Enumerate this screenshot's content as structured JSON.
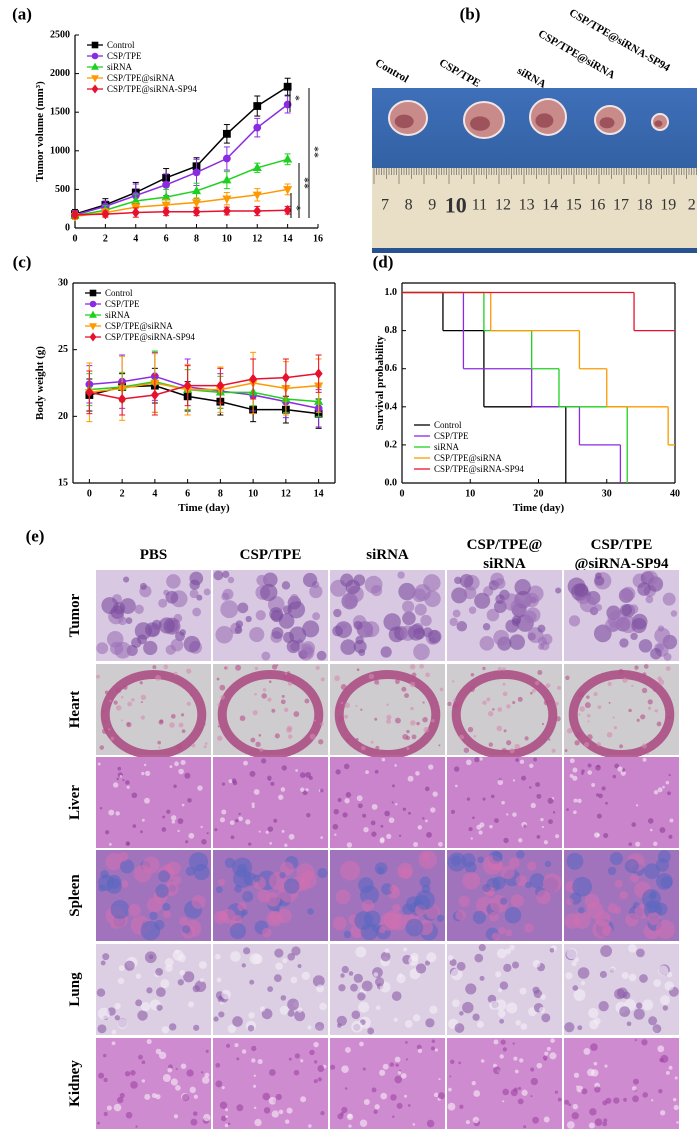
{
  "panels": {
    "a": "(a)",
    "b": "(b)",
    "c": "(c)",
    "d": "(d)",
    "e": "(e)"
  },
  "chart_data": [
    {
      "type": "line",
      "ylabel": "Tumor volume (mm³)",
      "x": [
        0,
        2,
        4,
        6,
        8,
        10,
        12,
        14
      ],
      "xlim": [
        0,
        16
      ],
      "xticks": [
        0,
        2,
        4,
        6,
        8,
        10,
        12,
        14,
        16
      ],
      "ylim": [
        0,
        2500
      ],
      "yticks": [
        0,
        500,
        1000,
        1500,
        2000,
        2500
      ],
      "legend": "upper left",
      "series": [
        {
          "name": "Control",
          "color": "#000000",
          "marker": "square",
          "values": [
            180,
            300,
            460,
            650,
            800,
            1220,
            1580,
            1830
          ],
          "errors": [
            60,
            80,
            130,
            120,
            110,
            120,
            130,
            110
          ]
        },
        {
          "name": "CSP/TPE",
          "color": "#8a2be2",
          "marker": "circle",
          "values": [
            170,
            280,
            420,
            560,
            720,
            900,
            1300,
            1600
          ],
          "errors": [
            50,
            70,
            150,
            140,
            170,
            150,
            120,
            110
          ]
        },
        {
          "name": "siRNA",
          "color": "#1fd11f",
          "marker": "triangle-up",
          "values": [
            160,
            230,
            350,
            400,
            480,
            620,
            780,
            890
          ],
          "errors": [
            40,
            60,
            90,
            100,
            100,
            110,
            60,
            70
          ]
        },
        {
          "name": "CSP/TPE@siRNA",
          "color": "#ff9900",
          "marker": "triangle-down",
          "values": [
            150,
            200,
            270,
            300,
            330,
            380,
            430,
            500
          ],
          "errors": [
            40,
            50,
            60,
            70,
            60,
            80,
            80,
            70
          ]
        },
        {
          "name": "CSP/TPE@siRNA-SP94",
          "color": "#e8112d",
          "marker": "diamond",
          "values": [
            170,
            180,
            200,
            210,
            210,
            220,
            220,
            230
          ],
          "errors": [
            40,
            40,
            60,
            50,
            50,
            50,
            60,
            50
          ]
        }
      ],
      "annotations": [
        "*",
        "**",
        "**",
        "*"
      ]
    },
    {
      "type": "line",
      "ylabel": "Body weight (g)",
      "xlabel": "Time (day)",
      "x": [
        0,
        2,
        4,
        6,
        8,
        10,
        12,
        14
      ],
      "xlim": [
        -1,
        15
      ],
      "xticks": [
        0,
        2,
        4,
        6,
        8,
        10,
        12,
        14
      ],
      "ylim": [
        15,
        30
      ],
      "yticks": [
        15,
        20,
        25,
        30
      ],
      "legend": "upper left",
      "series": [
        {
          "name": "Control",
          "color": "#000000",
          "marker": "square",
          "values": [
            21.6,
            22.2,
            22.3,
            21.5,
            21.1,
            20.5,
            20.5,
            20.2
          ],
          "errors": [
            1.2,
            1.0,
            1.3,
            1.1,
            1.0,
            0.9,
            1.0,
            1.1
          ]
        },
        {
          "name": "CSP/TPE",
          "color": "#8a2be2",
          "marker": "circle",
          "values": [
            22.4,
            22.6,
            23.0,
            22.2,
            21.9,
            21.6,
            21.1,
            20.6
          ],
          "errors": [
            1.4,
            2.0,
            1.8,
            2.1,
            1.3,
            1.2,
            1.2,
            1.4
          ]
        },
        {
          "name": "siRNA",
          "color": "#1fd11f",
          "marker": "triangle-up",
          "values": [
            22.0,
            22.2,
            22.6,
            22.0,
            21.8,
            21.8,
            21.3,
            21.1
          ],
          "errors": [
            1.2,
            1.1,
            2.3,
            1.5,
            1.2,
            1.0,
            1.0,
            1.1
          ]
        },
        {
          "name": "CSP/TPE@siRNA",
          "color": "#ff9900",
          "marker": "triangle-down",
          "values": [
            21.8,
            22.1,
            22.5,
            22.0,
            22.0,
            22.5,
            22.1,
            22.3
          ],
          "errors": [
            2.2,
            2.4,
            2.2,
            1.9,
            1.7,
            2.3,
            2.0,
            2.0
          ]
        },
        {
          "name": "CSP/TPE@siRNA-SP94",
          "color": "#e8112d",
          "marker": "diamond",
          "values": [
            21.8,
            21.3,
            21.6,
            22.3,
            22.3,
            22.8,
            22.9,
            23.2
          ],
          "errors": [
            1.6,
            1.2,
            1.5,
            1.5,
            1.3,
            1.5,
            1.4,
            1.4
          ]
        }
      ]
    },
    {
      "type": "step",
      "ylabel": "Survival probability",
      "xlabel": "Time (day)",
      "xlim": [
        0,
        40
      ],
      "xticks": [
        0,
        10,
        20,
        30,
        40
      ],
      "ylim": [
        0,
        1.05
      ],
      "yticks": [
        {
          "value": 0,
          "label": "0.0"
        },
        0.2,
        0.4,
        0.6,
        0.8,
        {
          "value": 1,
          "label": "1.0"
        }
      ],
      "legend": "lower left",
      "series": [
        {
          "name": "Control",
          "color": "#000000",
          "x": [
            0,
            6,
            12,
            24
          ],
          "values": [
            1,
            0.8,
            0.4,
            0
          ]
        },
        {
          "name": "CSP/TPE",
          "color": "#8a2be2",
          "x": [
            0,
            9,
            19,
            26,
            32
          ],
          "values": [
            1,
            0.6,
            0.4,
            0.2,
            0
          ]
        },
        {
          "name": "siRNA",
          "color": "#1fd11f",
          "x": [
            0,
            12,
            19,
            23,
            33
          ],
          "values": [
            1,
            0.8,
            0.6,
            0.4,
            0
          ]
        },
        {
          "name": "CSP/TPE@siRNA",
          "color": "#ff9900",
          "x": [
            0,
            13,
            26,
            30,
            39,
            40
          ],
          "values": [
            1,
            0.8,
            0.6,
            0.4,
            0.2,
            0.2
          ]
        },
        {
          "name": "CSP/TPE@siRNA-SP94",
          "color": "#e8112d",
          "x": [
            0,
            34,
            40
          ],
          "values": [
            1,
            0.8,
            0.8
          ]
        }
      ]
    }
  ],
  "photo": {
    "groups": [
      "Control",
      "CSP/TPE",
      "siRNA",
      "CSP/TPE@siRNA",
      "CSP/TPE@siRNA-SP94"
    ],
    "ruler": [
      "7",
      "8",
      "9",
      "10",
      "11",
      "12",
      "13",
      "14",
      "15",
      "16",
      "17",
      "18",
      "19",
      "2"
    ]
  },
  "histology": {
    "columns": [
      [
        "PBS"
      ],
      [
        "CSP/TPE"
      ],
      [
        "siRNA"
      ],
      [
        "CSP/TPE@",
        "siRNA"
      ],
      [
        "CSP/TPE",
        "@siRNA-SP94"
      ]
    ],
    "rows": [
      "Tumor",
      "Heart",
      "Liver",
      "Spleen",
      "Lung",
      "Kidney"
    ]
  }
}
